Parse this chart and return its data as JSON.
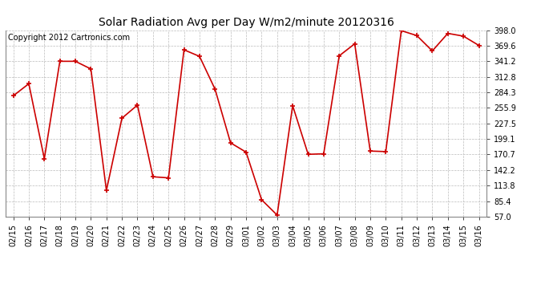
{
  "title": "Solar Radiation Avg per Day W/m2/minute 20120316",
  "copyright": "Copyright 2012 Cartronics.com",
  "labels": [
    "02/15",
    "02/16",
    "02/17",
    "02/18",
    "02/19",
    "02/20",
    "02/21",
    "02/22",
    "02/23",
    "02/24",
    "02/25",
    "02/26",
    "02/27",
    "02/28",
    "02/29",
    "03/01",
    "03/02",
    "03/03",
    "03/04",
    "03/05",
    "03/06",
    "03/07",
    "03/08",
    "03/09",
    "03/10",
    "03/11",
    "03/12",
    "03/13",
    "03/14",
    "03/15",
    "03/16"
  ],
  "values": [
    278,
    300,
    163,
    341,
    341,
    327,
    105,
    237,
    261,
    130,
    128,
    362,
    350,
    290,
    192,
    175,
    88,
    60,
    260,
    171,
    172,
    351,
    373,
    177,
    176,
    397,
    388,
    360,
    392,
    387,
    370
  ],
  "ymin": 57.0,
  "ymax": 398.0,
  "yticks": [
    57.0,
    85.4,
    113.8,
    142.2,
    170.7,
    199.1,
    227.5,
    255.9,
    284.3,
    312.8,
    341.2,
    369.6,
    398.0
  ],
  "line_color": "#cc0000",
  "marker_color": "#cc0000",
  "bg_color": "#ffffff",
  "grid_color": "#bbbbbb",
  "title_fontsize": 10,
  "copyright_fontsize": 7,
  "tick_fontsize": 7
}
